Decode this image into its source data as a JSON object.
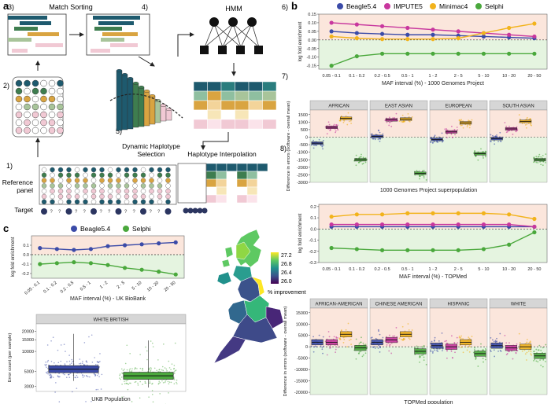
{
  "panel_letters": {
    "a": "a",
    "b": "b",
    "c": "c"
  },
  "panel_a": {
    "steps": {
      "s1": "1)",
      "s2": "2)",
      "s3": "3)",
      "s4": "4)",
      "s5": "5)",
      "s6": "6)",
      "s7": "7)",
      "s8": "8)"
    },
    "match_sorting": "Match Sorting",
    "hmm": "HMM",
    "dynamic_haplotype_selection_l1": "Dynamic Haplotype",
    "dynamic_haplotype_selection_l2": "Selection",
    "haplotype_interpolation": "Haplotype Interpolation",
    "reference_panel_l1": "Reference",
    "reference_panel_l2": "panel",
    "target": "Target"
  },
  "legend_b": [
    "Beagle5.4",
    "IMPUTE5",
    "Minimac4",
    "Selphi"
  ],
  "legend_c": [
    "Beagle5.4",
    "Selphi"
  ],
  "colors": {
    "beagle": "#3b4ba8",
    "impute": "#c8379e",
    "minimac": "#f2b31c",
    "selphi": "#4aa83c",
    "pos_bg": "#fbe6dc",
    "neg_bg": "#e5f4e0",
    "strip": "#d6d6d6"
  },
  "chart_data": [
    {
      "id": "b_top",
      "type": "line",
      "title": "",
      "xlabel": "MAF interval (%) - 1000 Genomes Project",
      "ylabel": "log fold enrichment",
      "categories": [
        "0.05 - 0.1",
        "0.1 - 0.2",
        "0.2 - 0.5",
        "0.5 - 1",
        "1 - 2",
        "2 - 5",
        "5 - 10",
        "10 - 20",
        "20 - 50"
      ],
      "yticks": [
        "0.15",
        "0.10",
        "0.05",
        "0.00",
        "-0.05",
        "-0.10",
        "-0.15"
      ],
      "ylim": [
        -0.17,
        0.15
      ],
      "series": [
        {
          "name": "Beagle5.4",
          "values": [
            0.05,
            0.04,
            0.035,
            0.03,
            0.03,
            0.025,
            0.02,
            0.015,
            0.01
          ]
        },
        {
          "name": "IMPUTE5",
          "values": [
            0.1,
            0.09,
            0.08,
            0.07,
            0.06,
            0.05,
            0.04,
            0.03,
            0.02
          ]
        },
        {
          "name": "Minimac4",
          "values": [
            0.02,
            0.01,
            0.005,
            0.005,
            0.005,
            0.01,
            0.04,
            0.07,
            0.095
          ]
        },
        {
          "name": "Selphi",
          "values": [
            -0.15,
            -0.095,
            -0.08,
            -0.08,
            -0.08,
            -0.08,
            -0.08,
            -0.08,
            -0.08
          ]
        }
      ]
    },
    {
      "id": "b_mid",
      "type": "boxplot",
      "title": "",
      "xlabel": "1000 Genomes Project superpopulation",
      "ylabel": "Difference in errors (software - overall mean)",
      "facets": [
        "AFRICAN",
        "EAST ASIAN",
        "EUROPEAN",
        "SOUTH ASIAN"
      ],
      "yticks": [
        "1500",
        "1000",
        "500",
        "0",
        "-500",
        "-1000",
        "-1500",
        "-2000",
        "-2500",
        "-3000"
      ],
      "ylim": [
        -3000,
        1800
      ],
      "medians": {
        "AFRICAN": [
          -400,
          650,
          1250,
          -1500
        ],
        "EAST ASIAN": [
          50,
          1150,
          1200,
          -2400
        ],
        "EUROPEAN": [
          -150,
          350,
          950,
          -1100
        ],
        "SOUTH ASIAN": [
          -100,
          550,
          1050,
          -1500
        ]
      }
    },
    {
      "id": "b_bot",
      "type": "line",
      "title": "",
      "xlabel": "MAF interval (%) - TOPMed",
      "ylabel": "log fold enrichment",
      "categories": [
        "0.05 - 0.1",
        "0.1 - 0.2",
        "0.2 - 0.5",
        "0.5 - 1",
        "1 - 2",
        "2 - 5",
        "5 - 10",
        "10 - 20",
        "20 - 50"
      ],
      "yticks": [
        "0.2",
        "0.1",
        "0.0",
        "-0.1",
        "-0.2",
        "-0.3"
      ],
      "ylim": [
        -0.3,
        0.22
      ],
      "series": [
        {
          "name": "Beagle5.4",
          "values": [
            0.02,
            0.02,
            0.02,
            0.02,
            0.02,
            0.02,
            0.02,
            0.02,
            0.02
          ]
        },
        {
          "name": "IMPUTE5",
          "values": [
            0.04,
            0.04,
            0.04,
            0.04,
            0.04,
            0.04,
            0.04,
            0.04,
            0.02
          ]
        },
        {
          "name": "Minimac4",
          "values": [
            0.11,
            0.13,
            0.13,
            0.14,
            0.14,
            0.14,
            0.14,
            0.13,
            0.09
          ]
        },
        {
          "name": "Selphi",
          "values": [
            -0.17,
            -0.18,
            -0.19,
            -0.19,
            -0.19,
            -0.19,
            -0.18,
            -0.14,
            -0.03
          ]
        }
      ]
    },
    {
      "id": "b_bottom",
      "type": "boxplot",
      "title": "",
      "xlabel": "TOPMed population",
      "ylabel": "Difference in errors (software - overall mean)",
      "facets": [
        "AFRICAN-AMERICAN",
        "CHINESE AMERICAN",
        "HISPANIC",
        "WHITE"
      ],
      "yticks": [
        "15000",
        "10000",
        "5000",
        "0",
        "-5000",
        "-10000",
        "-15000",
        "-20000"
      ],
      "ylim": [
        -21000,
        17000
      ],
      "medians": {
        "AFRICAN-AMERICAN": [
          2000,
          2000,
          5500,
          -500
        ],
        "CHINESE AMERICAN": [
          2000,
          3000,
          5500,
          -2000
        ],
        "HISPANIC": [
          500,
          0,
          2000,
          -3000
        ],
        "WHITE": [
          500,
          -500,
          0,
          -4000
        ]
      }
    },
    {
      "id": "c_line",
      "type": "line",
      "title": "",
      "xlabel": "MAF interval (%) - UK BioBank",
      "ylabel": "log fold enrichment",
      "categories": [
        "0.05 - 0.1",
        "0.1 - 0.2",
        "0.2 - 0.5",
        "0.5 - 1",
        "1 - 2",
        "2 - 5",
        "5 - 10",
        "10 - 20",
        "20 - 50"
      ],
      "yticks": [
        "0.1",
        "0.0",
        "-0.1",
        "-0.2"
      ],
      "ylim": [
        -0.25,
        0.2
      ],
      "series": [
        {
          "name": "Beagle5.4",
          "values": [
            0.07,
            0.06,
            0.05,
            0.06,
            0.09,
            0.1,
            0.11,
            0.12,
            0.13
          ]
        },
        {
          "name": "Selphi",
          "values": [
            -0.1,
            -0.09,
            -0.08,
            -0.09,
            -0.11,
            -0.14,
            -0.16,
            -0.18,
            -0.21
          ]
        }
      ]
    },
    {
      "id": "c_box",
      "type": "boxplot",
      "title": "",
      "xlabel": "UKB Population",
      "ylabel": "Error count (per sample)",
      "facets": [
        "WHITE BRITISH"
      ],
      "yticks": [
        "20000",
        "15000",
        "10000",
        "5000",
        "3000"
      ],
      "medians": {
        "WHITE BRITISH": [
          5400,
          4300
        ]
      }
    }
  ],
  "map": {
    "legend_values": [
      "27.2",
      "26.8",
      "26.4",
      "26.0"
    ],
    "legend_label": "% improvement"
  }
}
